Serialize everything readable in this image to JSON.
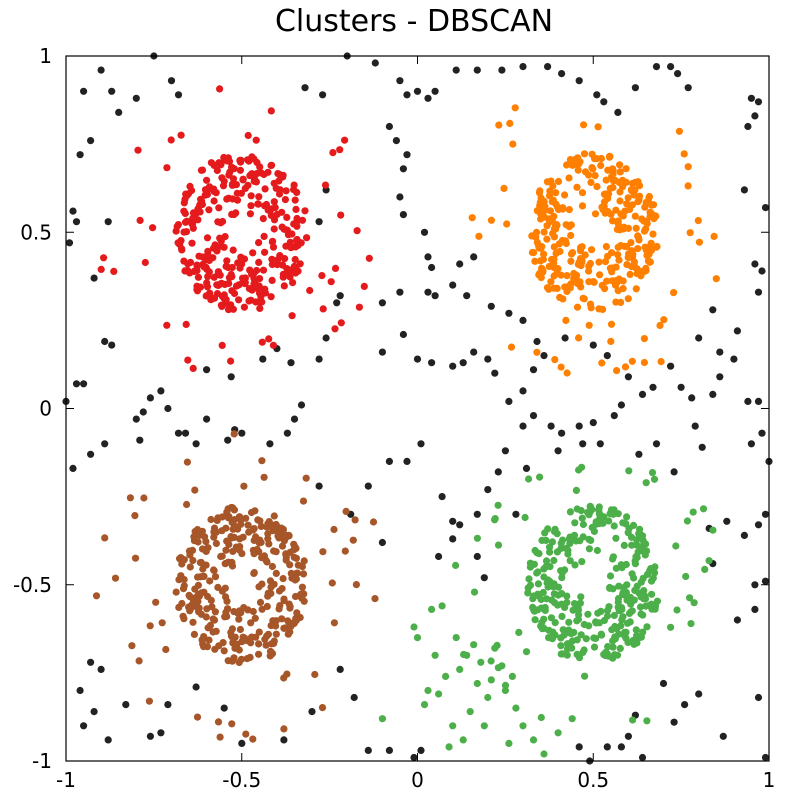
{
  "chart_data": {
    "type": "scatter",
    "title": "Clusters - DBSCAN",
    "xlabel": "",
    "ylabel": "",
    "xlim": [
      -1,
      1
    ],
    "ylim": [
      -1,
      1
    ],
    "x_ticks": [
      {
        "value": -1,
        "label": "-1"
      },
      {
        "value": -0.5,
        "label": "-0.5"
      },
      {
        "value": 0,
        "label": "0"
      },
      {
        "value": 0.5,
        "label": "0.5"
      },
      {
        "value": 1,
        "label": "1"
      }
    ],
    "y_ticks": [
      {
        "value": 1,
        "label": "1"
      },
      {
        "value": 0.5,
        "label": "0.5"
      },
      {
        "value": 0,
        "label": "0"
      },
      {
        "value": -0.5,
        "label": "-0.5"
      },
      {
        "value": -1,
        "label": "-1"
      }
    ],
    "grid": false,
    "legend": "none",
    "colors": {
      "red": "#e41a1c",
      "orange": "#ff7f00",
      "brown": "#a65628",
      "green": "#4daf4a",
      "noise": "#222222"
    },
    "clusters": [
      {
        "color_key": "red",
        "center": [
          -0.5,
          0.5
        ],
        "inner_radius": 0.05,
        "outer_radius": 0.25,
        "points": 320,
        "halo": 40
      },
      {
        "color_key": "orange",
        "center": [
          0.5,
          0.5
        ],
        "inner_radius": 0.05,
        "outer_radius": 0.25,
        "points": 320,
        "halo": 40
      },
      {
        "color_key": "brown",
        "center": [
          -0.5,
          -0.5
        ],
        "inner_radius": 0.05,
        "outer_radius": 0.25,
        "points": 320,
        "halo": 45
      },
      {
        "color_key": "green",
        "center": [
          0.5,
          -0.5
        ],
        "inner_radius": 0.05,
        "outer_radius": 0.25,
        "points": 320,
        "halo": 40
      }
    ],
    "green_tail": [
      [
        -0.01,
        -0.62
      ],
      [
        0.0,
        -0.65
      ],
      [
        0.04,
        -0.57
      ],
      [
        0.07,
        -0.56
      ],
      [
        0.05,
        -0.7
      ],
      [
        0.03,
        -0.8
      ],
      [
        0.06,
        -0.81
      ],
      [
        0.02,
        -0.84
      ],
      [
        0.1,
        -0.9
      ],
      [
        0.13,
        -0.94
      ],
      [
        0.11,
        -0.65
      ],
      [
        0.14,
        -0.7
      ],
      [
        0.12,
        -0.74
      ],
      [
        0.17,
        -0.78
      ],
      [
        0.2,
        -0.82
      ],
      [
        0.22,
        -0.68
      ],
      [
        0.25,
        -0.8
      ],
      [
        0.28,
        -0.85
      ],
      [
        0.3,
        -0.9
      ],
      [
        0.19,
        -0.9
      ],
      [
        0.24,
        -0.73
      ],
      [
        0.08,
        -0.76
      ],
      [
        0.16,
        -0.67
      ],
      [
        0.27,
        -0.76
      ],
      [
        0.21,
        -0.77
      ],
      [
        0.09,
        -0.96
      ],
      [
        0.33,
        -0.94
      ],
      [
        0.36,
        -0.98
      ],
      [
        0.4,
        -0.92
      ],
      [
        0.44,
        -0.88
      ],
      [
        -0.1,
        -0.88
      ],
      [
        0.15,
        -0.86
      ],
      [
        0.18,
        -0.72
      ],
      [
        0.31,
        -0.69
      ],
      [
        0.26,
        -0.95
      ]
    ],
    "noise_points": [
      [
        -0.95,
        0.9
      ],
      [
        -0.9,
        0.96
      ],
      [
        -0.87,
        0.9
      ],
      [
        -0.85,
        0.84
      ],
      [
        -0.8,
        0.88
      ],
      [
        -0.75,
        1.0
      ],
      [
        -0.7,
        0.93
      ],
      [
        -0.68,
        0.89
      ],
      [
        -0.93,
        0.76
      ],
      [
        -0.96,
        0.72
      ],
      [
        -0.98,
        0.56
      ],
      [
        -0.97,
        0.53
      ],
      [
        -0.99,
        0.47
      ],
      [
        -0.88,
        0.53
      ],
      [
        -0.92,
        0.37
      ],
      [
        -0.89,
        0.19
      ],
      [
        -0.87,
        0.18
      ],
      [
        -0.97,
        0.07
      ],
      [
        -0.95,
        0.07
      ],
      [
        -1.0,
        0.02
      ],
      [
        -0.98,
        -0.17
      ],
      [
        -0.93,
        -0.13
      ],
      [
        -0.89,
        -0.1
      ],
      [
        -0.76,
        0.03
      ],
      [
        -0.73,
        0.05
      ],
      [
        -0.71,
        0.0
      ],
      [
        -0.78,
        -0.01
      ],
      [
        -0.8,
        -0.03
      ],
      [
        -0.79,
        -0.09
      ],
      [
        -0.68,
        -0.07
      ],
      [
        -0.66,
        -0.07
      ],
      [
        -0.6,
        -0.03
      ],
      [
        -0.63,
        -0.1
      ],
      [
        -0.54,
        -0.09
      ],
      [
        -0.52,
        -0.06
      ],
      [
        -0.5,
        -0.07
      ],
      [
        -0.42,
        -0.1
      ],
      [
        -0.37,
        -0.07
      ],
      [
        -0.35,
        -0.03
      ],
      [
        -0.33,
        0.01
      ],
      [
        -0.36,
        0.13
      ],
      [
        -0.28,
        0.14
      ],
      [
        -0.26,
        0.2
      ],
      [
        -0.4,
        0.17
      ],
      [
        -0.44,
        0.14
      ],
      [
        -0.6,
        0.11
      ],
      [
        -0.53,
        0.09
      ],
      [
        -0.23,
        0.3
      ],
      [
        -0.22,
        0.32
      ],
      [
        -0.28,
        0.53
      ],
      [
        -0.26,
        0.62
      ],
      [
        -0.27,
        0.89
      ],
      [
        -0.32,
        0.91
      ],
      [
        -0.2,
        1.0
      ],
      [
        -0.12,
        0.98
      ],
      [
        -0.05,
        0.93
      ],
      [
        -0.03,
        0.89
      ],
      [
        0.0,
        0.9
      ],
      [
        0.03,
        0.88
      ],
      [
        0.05,
        0.9
      ],
      [
        0.11,
        0.96
      ],
      [
        0.17,
        0.96
      ],
      [
        0.24,
        0.96
      ],
      [
        0.3,
        0.97
      ],
      [
        0.37,
        0.97
      ],
      [
        0.41,
        0.95
      ],
      [
        0.46,
        0.93
      ],
      [
        0.51,
        0.89
      ],
      [
        0.53,
        0.87
      ],
      [
        0.57,
        0.84
      ],
      [
        0.62,
        0.91
      ],
      [
        0.68,
        0.97
      ],
      [
        0.72,
        0.97
      ],
      [
        0.74,
        0.95
      ],
      [
        0.77,
        0.91
      ],
      [
        0.95,
        0.88
      ],
      [
        0.97,
        0.87
      ],
      [
        0.96,
        0.83
      ],
      [
        0.94,
        0.8
      ],
      [
        0.99,
        0.57
      ],
      [
        0.93,
        0.62
      ],
      [
        0.96,
        0.41
      ],
      [
        0.98,
        0.39
      ],
      [
        0.97,
        0.33
      ],
      [
        0.9,
        0.14
      ],
      [
        0.86,
        0.09
      ],
      [
        0.84,
        0.04
      ],
      [
        0.94,
        0.02
      ],
      [
        0.97,
        0.02
      ],
      [
        0.98,
        -0.07
      ],
      [
        0.95,
        -0.1
      ],
      [
        1.0,
        -0.15
      ],
      [
        0.99,
        -0.3
      ],
      [
        0.97,
        -0.33
      ],
      [
        0.93,
        -0.36
      ],
      [
        0.88,
        -0.32
      ],
      [
        0.83,
        -0.34
      ],
      [
        0.84,
        -0.44
      ],
      [
        0.96,
        -0.5
      ],
      [
        0.99,
        -0.49
      ],
      [
        0.96,
        -0.57
      ],
      [
        0.91,
        -0.6
      ],
      [
        0.97,
        -0.82
      ],
      [
        0.99,
        -0.99
      ],
      [
        0.87,
        -0.93
      ],
      [
        0.8,
        -0.81
      ],
      [
        0.76,
        -0.84
      ],
      [
        0.73,
        -0.89
      ],
      [
        0.62,
        -0.87
      ],
      [
        0.6,
        -0.93
      ],
      [
        0.54,
        -0.96
      ],
      [
        0.49,
        -1.0
      ],
      [
        0.46,
        -0.96
      ],
      [
        -0.01,
        -0.99
      ],
      [
        0.01,
        -0.97
      ],
      [
        -0.08,
        -0.97
      ],
      [
        -0.14,
        -0.97
      ],
      [
        -0.18,
        -0.82
      ],
      [
        -0.22,
        -0.74
      ],
      [
        -0.3,
        -0.86
      ],
      [
        -0.38,
        -0.94
      ],
      [
        -0.5,
        -0.95
      ],
      [
        -0.55,
        -0.85
      ],
      [
        -0.63,
        -0.79
      ],
      [
        -0.71,
        -0.84
      ],
      [
        -0.76,
        -0.93
      ],
      [
        -0.73,
        -0.92
      ],
      [
        -0.88,
        -0.94
      ],
      [
        -0.95,
        -0.9
      ],
      [
        -0.92,
        -0.86
      ],
      [
        -0.96,
        -0.8
      ],
      [
        -0.93,
        -0.72
      ],
      [
        -0.9,
        -0.74
      ],
      [
        -0.83,
        -0.84
      ],
      [
        -0.08,
        -0.15
      ],
      [
        -0.03,
        -0.15
      ],
      [
        0.01,
        -0.1
      ],
      [
        0.07,
        -0.25
      ],
      [
        0.1,
        -0.32
      ],
      [
        0.12,
        -0.33
      ],
      [
        0.17,
        -0.3
      ],
      [
        0.2,
        -0.23
      ],
      [
        0.23,
        -0.18
      ],
      [
        0.25,
        -0.12
      ],
      [
        0.3,
        -0.05
      ],
      [
        0.33,
        -0.02
      ],
      [
        0.38,
        -0.05
      ],
      [
        0.41,
        -0.07
      ],
      [
        0.46,
        -0.05
      ],
      [
        0.5,
        -0.04
      ],
      [
        0.56,
        -0.02
      ],
      [
        0.58,
        0.01
      ],
      [
        0.64,
        0.04
      ],
      [
        0.67,
        0.06
      ],
      [
        0.72,
        0.12
      ],
      [
        0.75,
        0.06
      ],
      [
        0.78,
        0.03
      ],
      [
        0.79,
        -0.05
      ],
      [
        0.81,
        -0.11
      ],
      [
        0.73,
        -0.18
      ],
      [
        0.68,
        -0.1
      ],
      [
        0.63,
        -0.13
      ],
      [
        0.52,
        -0.1
      ],
      [
        0.47,
        -0.1
      ],
      [
        0.4,
        -0.12
      ],
      [
        0.31,
        -0.17
      ],
      [
        0.28,
        -0.3
      ],
      [
        0.6,
        0.09
      ],
      [
        0.54,
        0.15
      ],
      [
        0.5,
        0.18
      ],
      [
        0.42,
        0.2
      ],
      [
        0.36,
        0.15
      ],
      [
        0.33,
        0.11
      ],
      [
        0.3,
        0.05
      ],
      [
        0.26,
        0.02
      ],
      [
        0.22,
        0.1
      ],
      [
        0.2,
        0.14
      ],
      [
        0.16,
        0.16
      ],
      [
        0.13,
        0.13
      ],
      [
        0.1,
        0.12
      ],
      [
        0.04,
        0.13
      ],
      [
        0.0,
        0.14
      ],
      [
        -0.04,
        0.21
      ],
      [
        -0.1,
        0.16
      ],
      [
        -0.1,
        0.3
      ],
      [
        -0.05,
        0.33
      ],
      [
        0.03,
        0.33
      ],
      [
        0.05,
        0.32
      ],
      [
        0.04,
        0.4
      ],
      [
        0.03,
        0.43
      ],
      [
        0.02,
        0.5
      ],
      [
        -0.04,
        0.55
      ],
      [
        -0.05,
        0.6
      ],
      [
        -0.04,
        0.68
      ],
      [
        -0.03,
        0.72
      ],
      [
        -0.06,
        0.76
      ],
      [
        -0.08,
        0.8
      ],
      [
        0.1,
        0.35
      ],
      [
        0.14,
        0.32
      ],
      [
        0.12,
        0.41
      ],
      [
        0.16,
        0.43
      ],
      [
        0.3,
        0.25
      ],
      [
        0.26,
        0.27
      ],
      [
        0.21,
        0.29
      ],
      [
        0.34,
        0.19
      ],
      [
        0.8,
        0.2
      ],
      [
        0.86,
        0.16
      ],
      [
        0.91,
        0.22
      ],
      [
        0.84,
        0.28
      ],
      [
        -0.28,
        -0.22
      ],
      [
        -0.19,
        -0.3
      ],
      [
        -0.14,
        -0.22
      ],
      [
        -0.1,
        -0.38
      ],
      [
        0.06,
        -0.42
      ],
      [
        0.1,
        -0.37
      ],
      [
        0.17,
        -0.42
      ],
      [
        0.19,
        -0.48
      ],
      [
        0.7,
        -0.78
      ],
      [
        0.64,
        -0.99
      ],
      [
        0.58,
        -0.96
      ]
    ]
  }
}
